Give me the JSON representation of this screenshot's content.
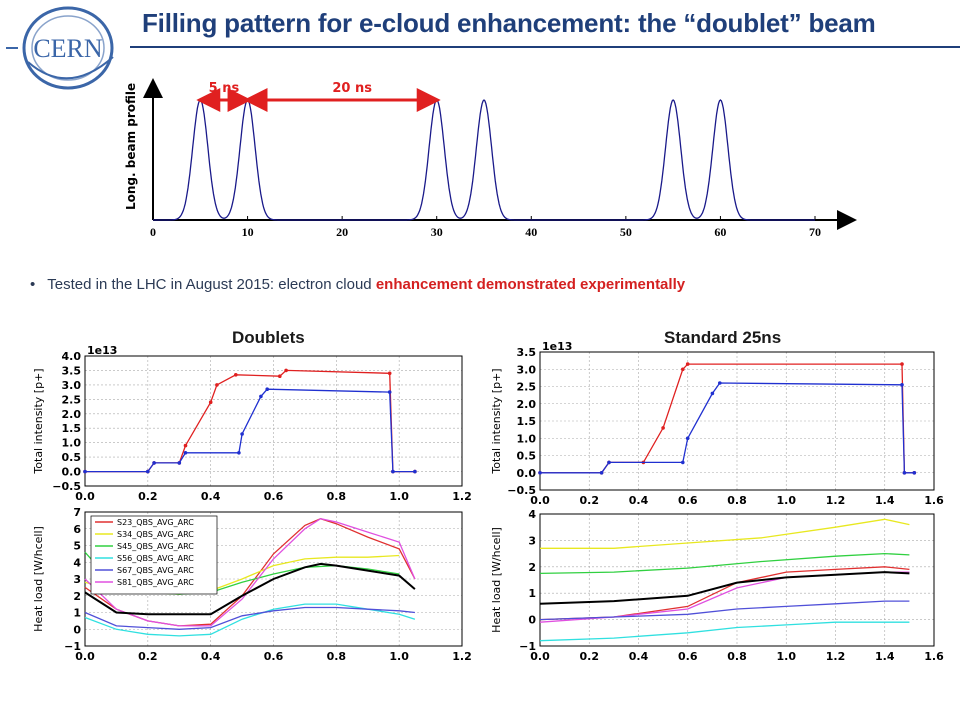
{
  "title": "Filling pattern for e-cloud enhancement: the “doublet” beam",
  "logo": {
    "text": "CERN"
  },
  "pulse_plot": {
    "ylabel": "Long. beam profile",
    "xticks": [
      "0",
      "10",
      "20",
      "30",
      "40",
      "50",
      "60",
      "70"
    ],
    "spacing_labels": [
      "5 ns",
      "20 ns"
    ],
    "peaks_ns": [
      5,
      10,
      30,
      35,
      55,
      60
    ],
    "xlim": [
      0,
      70
    ]
  },
  "bullet": {
    "text_prefix": "Tested in the LHC in August 2015: electron cloud ",
    "highlight": "enhancement demonstrated experimentally"
  },
  "panels": {
    "left_title": "Doublets",
    "right_title": "Standard 25ns"
  },
  "chart_data": [
    {
      "type": "line",
      "title": "",
      "ylabel": "Total intensity [p+]",
      "multiplier": "1e13",
      "xlim": [
        0,
        1.2
      ],
      "ylim": [
        -0.5,
        4.0
      ],
      "xticks": [
        "0.0",
        "0.2",
        "0.4",
        "0.6",
        "0.8",
        "1.0",
        "1.2"
      ],
      "yticks": [
        "−0.5",
        "0.0",
        "0.5",
        "1.0",
        "1.5",
        "2.0",
        "2.5",
        "3.0",
        "3.5",
        "4.0"
      ],
      "series": [
        {
          "color": "#e02020",
          "x": [
            0,
            0.2,
            0.22,
            0.3,
            0.32,
            0.4,
            0.42,
            0.48,
            0.62,
            0.64,
            0.97,
            0.98,
            1.05
          ],
          "values": [
            0,
            0,
            0.3,
            0.3,
            0.9,
            2.4,
            3.0,
            3.35,
            3.3,
            3.5,
            3.4,
            0,
            0
          ]
        },
        {
          "color": "#2030d0",
          "x": [
            0,
            0.2,
            0.22,
            0.3,
            0.32,
            0.49,
            0.5,
            0.56,
            0.58,
            0.97,
            0.98,
            1.05
          ],
          "values": [
            0,
            0,
            0.3,
            0.3,
            0.65,
            0.65,
            1.3,
            2.6,
            2.85,
            2.75,
            0,
            0
          ]
        }
      ]
    },
    {
      "type": "line",
      "title": "",
      "ylabel": "Total intensity [p+]",
      "multiplier": "1e13",
      "xlim": [
        0,
        1.6
      ],
      "ylim": [
        -0.5,
        3.5
      ],
      "xticks": [
        "0.0",
        "0.2",
        "0.4",
        "0.6",
        "0.8",
        "1.0",
        "1.2",
        "1.4",
        "1.6"
      ],
      "yticks": [
        "−0.5",
        "0.0",
        "0.5",
        "1.0",
        "1.5",
        "2.0",
        "2.5",
        "3.0",
        "3.5"
      ],
      "series": [
        {
          "color": "#e02020",
          "x": [
            0,
            0.25,
            0.28,
            0.42,
            0.5,
            0.58,
            0.6,
            1.47,
            1.48,
            1.52
          ],
          "values": [
            0,
            0,
            0.3,
            0.3,
            1.3,
            3.0,
            3.15,
            3.15,
            0,
            0
          ]
        },
        {
          "color": "#2030d0",
          "x": [
            0,
            0.25,
            0.28,
            0.58,
            0.6,
            0.7,
            0.73,
            1.47,
            1.48,
            1.52
          ],
          "values": [
            0,
            0,
            0.3,
            0.3,
            1.0,
            2.3,
            2.6,
            2.55,
            0,
            0
          ]
        }
      ]
    },
    {
      "type": "line",
      "title": "",
      "ylabel": "Heat load [W/hcell]",
      "xlim": [
        0,
        1.2
      ],
      "ylim": [
        -1,
        7
      ],
      "xticks": [
        "0.0",
        "0.2",
        "0.4",
        "0.6",
        "0.8",
        "1.0",
        "1.2"
      ],
      "yticks": [
        "−1",
        "0",
        "1",
        "2",
        "3",
        "4",
        "5",
        "6",
        "7"
      ],
      "legend_position": "top-left",
      "series": [
        {
          "name": "S23_QBS_AVG_ARC",
          "color": "#e03030",
          "x": [
            0,
            0.1,
            0.2,
            0.3,
            0.4,
            0.5,
            0.6,
            0.7,
            0.75,
            0.8,
            0.9,
            1.0,
            1.05
          ],
          "values": [
            2.5,
            1.2,
            0.5,
            0.2,
            0.3,
            2.0,
            4.5,
            6.2,
            6.6,
            6.3,
            5.5,
            4.8,
            3.0
          ]
        },
        {
          "name": "S34_QBS_AVG_ARC",
          "color": "#e8e820",
          "x": [
            0,
            0.1,
            0.2,
            0.3,
            0.4,
            0.5,
            0.6,
            0.7,
            0.8,
            0.9,
            1.0
          ],
          "values": [
            2.8,
            2.3,
            2.2,
            2.1,
            2.3,
            3.0,
            3.8,
            4.2,
            4.3,
            4.3,
            4.4
          ]
        },
        {
          "name": "S45_QBS_AVG_ARC",
          "color": "#30d040",
          "x": [
            0,
            0.1,
            0.2,
            0.3,
            0.4,
            0.5,
            0.6,
            0.7,
            0.8,
            0.9,
            1.0
          ],
          "values": [
            4.6,
            2.5,
            2.2,
            2.1,
            2.2,
            2.8,
            3.3,
            3.7,
            3.8,
            3.6,
            3.3
          ]
        },
        {
          "name": "S56_QBS_AVG_ARC",
          "color": "#30e0e0",
          "x": [
            0,
            0.1,
            0.2,
            0.3,
            0.4,
            0.5,
            0.6,
            0.7,
            0.8,
            0.9,
            1.0,
            1.05
          ],
          "values": [
            0.7,
            0.0,
            -0.3,
            -0.4,
            -0.3,
            0.6,
            1.2,
            1.5,
            1.5,
            1.2,
            0.9,
            0.6
          ]
        },
        {
          "name": "S67_QBS_AVG_ARC",
          "color": "#5050d8",
          "x": [
            0,
            0.1,
            0.2,
            0.3,
            0.4,
            0.5,
            0.6,
            0.7,
            0.8,
            0.9,
            1.0,
            1.05
          ],
          "values": [
            1.0,
            0.2,
            0.1,
            0.0,
            0.1,
            0.8,
            1.1,
            1.3,
            1.3,
            1.2,
            1.1,
            1.0
          ]
        },
        {
          "name": "S81_QBS_AVG_ARC",
          "color": "#e050e0",
          "x": [
            0,
            0.1,
            0.2,
            0.3,
            0.4,
            0.5,
            0.6,
            0.7,
            0.75,
            0.8,
            0.9,
            1.0,
            1.05
          ],
          "values": [
            3.0,
            1.2,
            0.5,
            0.2,
            0.2,
            1.8,
            4.2,
            6.0,
            6.6,
            6.4,
            5.8,
            5.2,
            3.0
          ]
        },
        {
          "color": "#000000",
          "x": [
            0,
            0.1,
            0.2,
            0.3,
            0.4,
            0.5,
            0.6,
            0.7,
            0.75,
            0.8,
            0.9,
            1.0,
            1.05
          ],
          "values": [
            2.2,
            1.0,
            0.9,
            0.9,
            0.9,
            2.0,
            3.0,
            3.7,
            3.9,
            3.8,
            3.5,
            3.2,
            2.4
          ]
        }
      ]
    },
    {
      "type": "line",
      "title": "",
      "ylabel": "Heat load [W/hcell]",
      "xlim": [
        0,
        1.6
      ],
      "ylim": [
        -1,
        4
      ],
      "xticks": [
        "0.0",
        "0.2",
        "0.4",
        "0.6",
        "0.8",
        "1.0",
        "1.2",
        "1.4",
        "1.6"
      ],
      "yticks": [
        "−1",
        "0",
        "1",
        "2",
        "3",
        "4"
      ],
      "series": [
        {
          "color": "#e8e820",
          "x": [
            0,
            0.3,
            0.6,
            0.9,
            1.2,
            1.4,
            1.5
          ],
          "values": [
            2.7,
            2.7,
            2.9,
            3.1,
            3.5,
            3.8,
            3.6
          ]
        },
        {
          "color": "#30d040",
          "x": [
            0,
            0.3,
            0.6,
            0.9,
            1.2,
            1.4,
            1.5
          ],
          "values": [
            1.75,
            1.8,
            1.95,
            2.2,
            2.4,
            2.5,
            2.45
          ]
        },
        {
          "color": "#e03030",
          "x": [
            0,
            0.3,
            0.6,
            0.8,
            1.0,
            1.2,
            1.4,
            1.5
          ],
          "values": [
            0.0,
            0.1,
            0.5,
            1.4,
            1.8,
            1.9,
            2.0,
            1.9
          ]
        },
        {
          "color": "#e050e0",
          "x": [
            0,
            0.3,
            0.6,
            0.8,
            1.0,
            1.2,
            1.4,
            1.5
          ],
          "values": [
            -0.1,
            0.1,
            0.4,
            1.2,
            1.6,
            1.7,
            1.8,
            1.8
          ]
        },
        {
          "color": "#5050d8",
          "x": [
            0,
            0.3,
            0.6,
            0.8,
            1.0,
            1.2,
            1.4,
            1.5
          ],
          "values": [
            0.0,
            0.1,
            0.2,
            0.4,
            0.5,
            0.6,
            0.7,
            0.7
          ]
        },
        {
          "color": "#30e0e0",
          "x": [
            0,
            0.3,
            0.6,
            0.8,
            1.0,
            1.2,
            1.4,
            1.5
          ],
          "values": [
            -0.8,
            -0.7,
            -0.5,
            -0.3,
            -0.2,
            -0.1,
            -0.1,
            -0.1
          ]
        },
        {
          "color": "#000000",
          "x": [
            0,
            0.3,
            0.6,
            0.8,
            1.0,
            1.2,
            1.4,
            1.5
          ],
          "values": [
            0.6,
            0.7,
            0.9,
            1.4,
            1.6,
            1.7,
            1.8,
            1.75
          ]
        }
      ]
    }
  ]
}
